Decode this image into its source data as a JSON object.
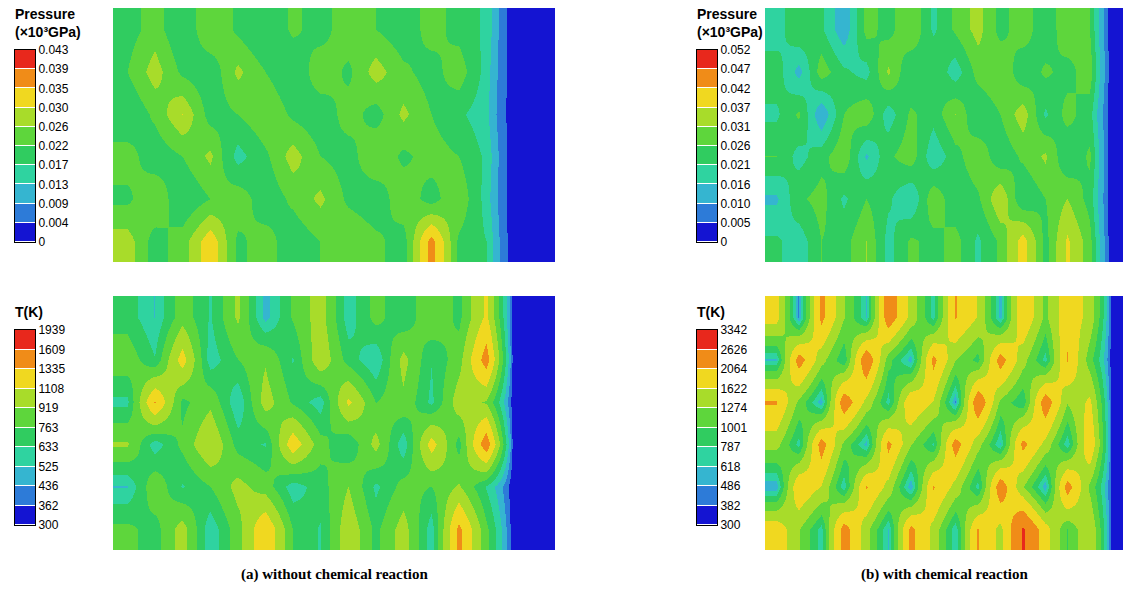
{
  "captions": [
    "(a) without chemical reaction",
    "(b) with chemical reaction"
  ],
  "chart_data": [
    {
      "type": "heatmap",
      "colorbar_title": "Pressure (×10³GPa)",
      "tick_labels": false,
      "colorbar_range": [
        0,
        0.043
      ],
      "colorbar_ticks": [
        0,
        0.004,
        0.009,
        0.013,
        0.017,
        0.022,
        0.026,
        {
          "value": 0.03,
          "label": "0.030"
        },
        0.035,
        0.039,
        0.043
      ],
      "colors": [
        "#1414d2",
        "#2d7bd8",
        "#35b5d0",
        "#2fd3a0",
        "#30cc60",
        "#5ed63c",
        "#a8dc2a",
        "#f0d820",
        "#f08c18",
        "#e8281c"
      ],
      "z": [
        [
          0.02,
          0.024,
          0.018,
          0.026,
          0.021,
          0.017,
          0.023,
          0.02,
          0.025,
          0.022,
          0.019,
          0.024,
          0.02,
          0.016,
          0,
          0
        ],
        [
          0.022,
          0.028,
          0.021,
          0.019,
          0.027,
          0.022,
          0.018,
          0.025,
          0.021,
          0.028,
          0.023,
          0.02,
          0.025,
          0.015,
          0,
          0
        ],
        [
          0.018,
          0.023,
          0.03,
          0.02,
          0.022,
          0.026,
          0.021,
          0.019,
          0.024,
          0.02,
          0.027,
          0.022,
          0.018,
          0.014,
          0,
          0
        ],
        [
          0.024,
          0.019,
          0.022,
          0.027,
          0.015,
          0.021,
          0.028,
          0.022,
          0.02,
          0.026,
          0.021,
          0.024,
          0.022,
          0.016,
          0,
          0
        ],
        [
          0.021,
          0.026,
          0.018,
          0.022,
          0.025,
          0.019,
          0.023,
          0.027,
          0.021,
          0.019,
          0.025,
          0.02,
          0.026,
          0.015,
          0,
          0
        ],
        [
          0.028,
          0.02,
          0.024,
          0.033,
          0.021,
          0.024,
          0.019,
          0.022,
          0.026,
          0.023,
          0.02,
          0.037,
          0.021,
          0.017,
          0,
          0
        ]
      ]
    },
    {
      "type": "heatmap",
      "colorbar_title": "T(K)",
      "tick_labels": false,
      "colorbar_range": [
        300,
        1939
      ],
      "colorbar_ticks": [
        300,
        362,
        436,
        525,
        633,
        763,
        919,
        1108,
        1335,
        1609,
        1939
      ],
      "colors": [
        "#1414d2",
        "#2d7bd8",
        "#35b5d0",
        "#2fd3a0",
        "#30cc60",
        "#5ed63c",
        "#a8dc2a",
        "#f0d820",
        "#f08c18",
        "#e8281c"
      ],
      "z": [
        [
          700,
          520,
          850,
          620,
          950,
          480,
          780,
          1000,
          560,
          820,
          650,
          900,
          720,
          1150,
          300,
          300
        ],
        [
          860,
          640,
          1200,
          560,
          760,
          900,
          620,
          1050,
          700,
          520,
          980,
          640,
          850,
          1450,
          300,
          300
        ],
        [
          600,
          1350,
          720,
          880,
          520,
          1000,
          740,
          560,
          1150,
          760,
          880,
          600,
          1020,
          900,
          300,
          300
        ],
        [
          940,
          560,
          800,
          1100,
          700,
          620,
          1250,
          820,
          640,
          980,
          540,
          1200,
          700,
          1500,
          300,
          300
        ],
        [
          520,
          880,
          620,
          760,
          980,
          840,
          560,
          700,
          920,
          600,
          820,
          760,
          940,
          620,
          300,
          300
        ],
        [
          800,
          700,
          1000,
          540,
          850,
          1300,
          760,
          620,
          1050,
          720,
          1000,
          560,
          1400,
          800,
          300,
          300
        ]
      ]
    },
    {
      "type": "heatmap",
      "colorbar_title": "Pressure (×10³GPa)",
      "tick_labels": false,
      "colorbar_range": [
        0,
        0.052
      ],
      "colorbar_ticks": [
        0,
        0.005,
        {
          "value": 0.01,
          "label": "0.010"
        },
        0.016,
        0.021,
        0.026,
        0.031,
        0.037,
        0.042,
        0.047,
        0.052
      ],
      "colors": [
        "#1414d2",
        "#2d7bd8",
        "#35b5d0",
        "#2fd3a0",
        "#30cc60",
        "#5ed63c",
        "#a8dc2a",
        "#f0d820",
        "#f08c18",
        "#e8281c"
      ],
      "z": [
        [
          0.018,
          0.026,
          0.022,
          0.012,
          0.028,
          0.024,
          0.031,
          0.02,
          0.027,
          0.033,
          0.024,
          0.029,
          0.022,
          0.03,
          0.026,
          0
        ],
        [
          0.024,
          0.014,
          0.029,
          0.022,
          0.019,
          0.032,
          0.021,
          0.026,
          0.018,
          0.028,
          0.031,
          0.022,
          0.027,
          0.024,
          0.029,
          0
        ],
        [
          0.02,
          0.027,
          0.011,
          0.026,
          0.03,
          0.018,
          0.027,
          0.023,
          0.031,
          0.021,
          0.026,
          0.034,
          0.02,
          0.028,
          0.023,
          0
        ],
        [
          0.026,
          0.019,
          0.024,
          0.03,
          0.015,
          0.025,
          0.029,
          0.017,
          0.024,
          0.03,
          0.022,
          0.027,
          0.032,
          0.021,
          0.027,
          0
        ],
        [
          0.015,
          0.025,
          0.028,
          0.02,
          0.026,
          0.022,
          0.016,
          0.03,
          0.022,
          0.025,
          0.036,
          0.021,
          0.026,
          0.031,
          0.024,
          0
        ],
        [
          0.022,
          0.018,
          0.026,
          0.024,
          0.031,
          0.019,
          0.027,
          0.024,
          0.028,
          0.02,
          0.027,
          0.04,
          0.024,
          0.038,
          0.028,
          0
        ]
      ]
    },
    {
      "type": "heatmap",
      "colorbar_title": "T(K)",
      "tick_labels": false,
      "colorbar_range": [
        300,
        3342
      ],
      "colorbar_ticks": [
        300,
        382,
        486,
        618,
        787,
        1001,
        1274,
        1622,
        2064,
        2626,
        3342
      ],
      "colors": [
        "#1414d2",
        "#2d7bd8",
        "#35b5d0",
        "#2fd3a0",
        "#30cc60",
        "#5ed63c",
        "#a8dc2a",
        "#f0d820",
        "#f08c18",
        "#e8281c"
      ],
      "z": [
        [
          1800,
          450,
          2200,
          1300,
          600,
          2400,
          1500,
          700,
          2100,
          1600,
          550,
          2000,
          1200,
          1900,
          1500,
          300
        ],
        [
          600,
          2300,
          1400,
          800,
          2500,
          1100,
          520,
          2200,
          1300,
          900,
          2300,
          1400,
          700,
          2100,
          1100,
          300
        ],
        [
          2100,
          1200,
          500,
          2400,
          1500,
          700,
          2000,
          1600,
          450,
          2500,
          1200,
          800,
          2400,
          1300,
          1700,
          300
        ],
        [
          1400,
          700,
          2300,
          1200,
          550,
          2200,
          1300,
          750,
          2300,
          1400,
          600,
          2200,
          1500,
          650,
          2000,
          300
        ],
        [
          500,
          2000,
          1600,
          650,
          2100,
          1500,
          480,
          2100,
          1500,
          700,
          2400,
          1300,
          500,
          2300,
          1200,
          300
        ],
        [
          1900,
          1300,
          700,
          2300,
          1400,
          600,
          2200,
          1500,
          650,
          2100,
          1500,
          2700,
          1800,
          1000,
          1600,
          300
        ]
      ]
    }
  ]
}
